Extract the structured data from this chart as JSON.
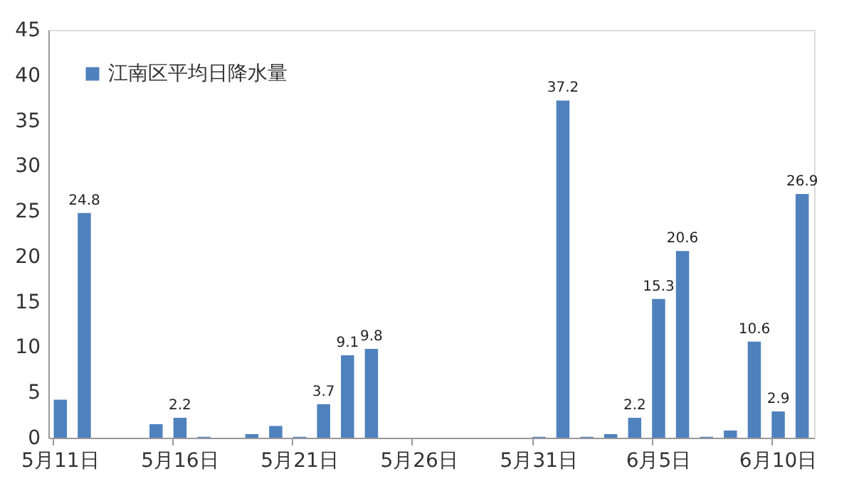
{
  "chart_data": {
    "type": "bar",
    "categories": [
      "5月11日",
      null,
      null,
      null,
      null,
      "5月16日",
      null,
      null,
      null,
      null,
      "5月21日",
      null,
      null,
      null,
      null,
      "5月26日",
      null,
      null,
      null,
      null,
      "5月31日",
      null,
      null,
      null,
      null,
      "6月5日",
      null,
      null,
      null,
      null,
      "6月10日",
      null
    ],
    "series": [
      {
        "name": "江南区平均日降水量",
        "color": "#4f81bd",
        "values": [
          4.2,
          24.8,
          0,
          0,
          1.5,
          2.2,
          0.1,
          0,
          0.4,
          1.3,
          0.1,
          3.7,
          9.1,
          9.8,
          0,
          0,
          0,
          0,
          0,
          0,
          0.1,
          37.2,
          0.1,
          0.4,
          2.2,
          15.3,
          20.6,
          0.1,
          0.8,
          10.6,
          2.9,
          26.9
        ],
        "value_labels": [
          null,
          "24.8",
          null,
          null,
          null,
          "2.2",
          null,
          null,
          null,
          null,
          null,
          "3.7",
          "9.1",
          "9.8",
          null,
          null,
          null,
          null,
          null,
          null,
          null,
          "37.2",
          null,
          null,
          "2.2",
          "15.3",
          "20.6",
          null,
          null,
          "10.6",
          "2.9",
          "26.9"
        ]
      }
    ],
    "ylim": [
      0,
      45
    ],
    "yticks": [
      0,
      5,
      10,
      15,
      20,
      25,
      30,
      35,
      40,
      45
    ],
    "grid": false,
    "legend": "top left"
  }
}
